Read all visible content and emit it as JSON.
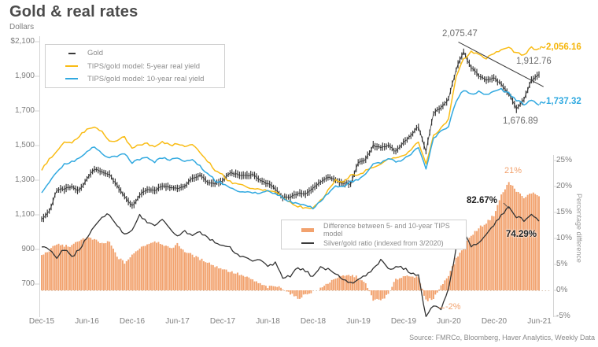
{
  "page": {
    "title": "Gold & real rates",
    "source": "Source: FMRCo, Bloomberg, Haver Analytics, Weekly Data"
  },
  "colors": {
    "gold_series": "#333333",
    "model_5y": "#F9BC15",
    "model_10y": "#31A9E0",
    "diff_area": "#F2A26E",
    "ratio_line": "#333333",
    "axis": "#d4d4d4",
    "text_gray": "#7e7e7e"
  },
  "chart_data": {
    "type": "combo: ohlc-bars + line + stepped-area",
    "title": "Gold & real rates",
    "x_axis": {
      "unit": "months since Dec-2015",
      "tick_labels": [
        "Dec-15",
        "Jun-16",
        "Dec-16",
        "Jun-17",
        "Dec-17",
        "Jun-18",
        "Dec-18",
        "Jun-19",
        "Dec-19",
        "Jun-20",
        "Dec-20",
        "Jun-21"
      ],
      "tick_months": [
        0,
        6,
        12,
        18,
        24,
        30,
        36,
        42,
        48,
        54,
        60,
        66
      ]
    },
    "left_axis": {
      "label": "Dollars",
      "tick_labels": [
        "$2,100",
        "1,900",
        "1,700",
        "1,500",
        "1,300",
        "1,100",
        "900",
        "700"
      ],
      "tick_values": [
        2100,
        1900,
        1700,
        1500,
        1300,
        1100,
        900,
        700
      ],
      "range": [
        700,
        2100
      ]
    },
    "right_axis": {
      "label": "Percentage difference",
      "tick_labels": [
        "25%",
        "20%",
        "15%",
        "10%",
        "5%",
        "0%",
        "-5%"
      ],
      "tick_values": [
        25,
        20,
        15,
        10,
        5,
        0,
        -5
      ],
      "range": [
        -5,
        25
      ]
    },
    "legend_top": [
      {
        "label": "Gold",
        "color": "#3a3a3a",
        "style": "line"
      },
      {
        "label": "TIPS/gold model: 5-year real yield",
        "color": "#F9BC15",
        "style": "line"
      },
      {
        "label": "TIPS/gold model: 10-year real yield",
        "color": "#31A9E0",
        "style": "line"
      }
    ],
    "legend_bottom": [
      {
        "label": "Difference between 5- and 10-year TIPS model",
        "color": "#F2A26E",
        "style": "area"
      },
      {
        "label": "Silver/gold ratio (indexed from 3/2020)",
        "color": "#3a3a3a",
        "style": "line"
      }
    ],
    "series": [
      {
        "name": "Gold",
        "axis": "left_dollars",
        "style": "weekly-bars",
        "color": "#333333",
        "monthly_values": [
          1075,
          1120,
          1240,
          1250,
          1260,
          1240,
          1310,
          1365,
          1345,
          1330,
          1270,
          1210,
          1150,
          1210,
          1250,
          1240,
          1265,
          1260,
          1250,
          1265,
          1310,
          1330,
          1290,
          1280,
          1295,
          1345,
          1330,
          1325,
          1330,
          1300,
          1280,
          1250,
          1200,
          1200,
          1225,
          1220,
          1250,
          1290,
          1320,
          1300,
          1285,
          1280,
          1400,
          1420,
          1500,
          1490,
          1500,
          1465,
          1515,
          1560,
          1610,
          1470,
          1690,
          1720,
          1770,
          1940,
          2040,
          1950,
          1905,
          1875,
          1890,
          1855,
          1800,
          1710,
          1770,
          1880,
          1910
        ]
      },
      {
        "name": "TIPS/gold model: 5-year real yield",
        "axis": "left_dollars",
        "style": "line",
        "color": "#F9BC15",
        "monthly_values": [
          1360,
          1420,
          1465,
          1515,
          1520,
          1555,
          1595,
          1610,
          1577,
          1523,
          1532,
          1550,
          1480,
          1505,
          1509,
          1490,
          1523,
          1500,
          1510,
          1490,
          1505,
          1460,
          1410,
          1360,
          1330,
          1290,
          1273,
          1265,
          1255,
          1248,
          1241,
          1230,
          1200,
          1170,
          1150,
          1140,
          1136,
          1180,
          1240,
          1300,
          1290,
          1330,
          1330,
          1355,
          1375,
          1395,
          1420,
          1430,
          1440,
          1480,
          1520,
          1390,
          1560,
          1600,
          1650,
          1900,
          2000,
          2040,
          2030,
          2005,
          2030,
          2050,
          2065,
          2035,
          2020,
          2065,
          2056
        ]
      },
      {
        "name": "TIPS/gold model: 10-year real yield",
        "axis": "left_dollars",
        "style": "line",
        "color": "#31A9E0",
        "monthly_values": [
          1230,
          1285,
          1345,
          1395,
          1405,
          1430,
          1465,
          1490,
          1455,
          1430,
          1440,
          1450,
          1400,
          1420,
          1430,
          1405,
          1430,
          1415,
          1425,
          1405,
          1420,
          1380,
          1340,
          1300,
          1280,
          1250,
          1240,
          1235,
          1230,
          1225,
          1235,
          1222,
          1200,
          1175,
          1165,
          1150,
          1140,
          1175,
          1225,
          1270,
          1260,
          1295,
          1300,
          1340,
          1395,
          1400,
          1425,
          1410,
          1420,
          1450,
          1490,
          1370,
          1540,
          1580,
          1610,
          1760,
          1820,
          1800,
          1810,
          1790,
          1810,
          1825,
          1800,
          1760,
          1740,
          1760,
          1737
        ]
      },
      {
        "name": "Difference between 5- and 10-year TIPS model",
        "axis": "right_percent",
        "style": "stepped-area",
        "color": "#F2A26E",
        "monthly_values": [
          6.7,
          7.7,
          8.9,
          8.6,
          8.5,
          9.7,
          10.2,
          9.7,
          9.0,
          9.3,
          6.5,
          5.3,
          6.7,
          8.2,
          8.9,
          9.5,
          9.0,
          8.0,
          8.9,
          7.5,
          6.8,
          6.0,
          5.5,
          4.6,
          4.2,
          3.6,
          3.2,
          2.6,
          2.0,
          1.2,
          0.6,
          0.8,
          0.4,
          -0.6,
          -1.6,
          -0.8,
          -0.2,
          0.3,
          1.4,
          2.4,
          2.7,
          2.9,
          2.5,
          1.2,
          -1.8,
          -1.9,
          -0.8,
          2.1,
          2.7,
          2.9,
          2.3,
          -2.0,
          -1.5,
          0.8,
          3.0,
          6.0,
          8.5,
          10.5,
          12.0,
          13.0,
          14.5,
          18.3,
          20.8,
          19.2,
          17.7,
          18.8,
          18.3
        ]
      },
      {
        "name": "Silver/gold ratio (indexed from 3/2020)",
        "axis": "right_percent",
        "style": "line",
        "color": "#333333",
        "monthly_values": [
          8.5,
          7.9,
          6.4,
          7.9,
          6.4,
          8.0,
          10.0,
          12.5,
          14.2,
          14.6,
          12.2,
          11.0,
          11.5,
          14.6,
          13.0,
          12.6,
          13.4,
          12.0,
          10.6,
          11.4,
          10.4,
          11.2,
          10.2,
          9.4,
          8.8,
          8.2,
          7.0,
          6.2,
          5.4,
          5.8,
          4.6,
          5.2,
          2.4,
          2.8,
          4.4,
          3.8,
          2.6,
          4.6,
          4.0,
          3.4,
          2.2,
          1.4,
          2.0,
          3.0,
          4.2,
          5.8,
          4.0,
          4.6,
          4.3,
          3.4,
          2.8,
          -5.1,
          -2.9,
          -3.8,
          0.5,
          8.0,
          11.2,
          8.6,
          9.0,
          10.5,
          12.7,
          14.5,
          16.1,
          14.2,
          13.5,
          14.5,
          13.2
        ]
      }
    ],
    "annotations": {
      "gold_peak": "2,075.47",
      "model5_end": "2,056.16",
      "gold_end": "1,912.76",
      "model10_end": "1,737.32",
      "gold_low_2021": "1,676.89",
      "diff_peak": "21%",
      "ratio_peak": "82.67%",
      "ratio_end": "74.29%",
      "diff_low": "-2%"
    },
    "trendline": {
      "axis": "left_dollars",
      "from_month_value": [
        55.3,
        2098
      ],
      "to_month_value": [
        66.6,
        1840
      ]
    }
  }
}
